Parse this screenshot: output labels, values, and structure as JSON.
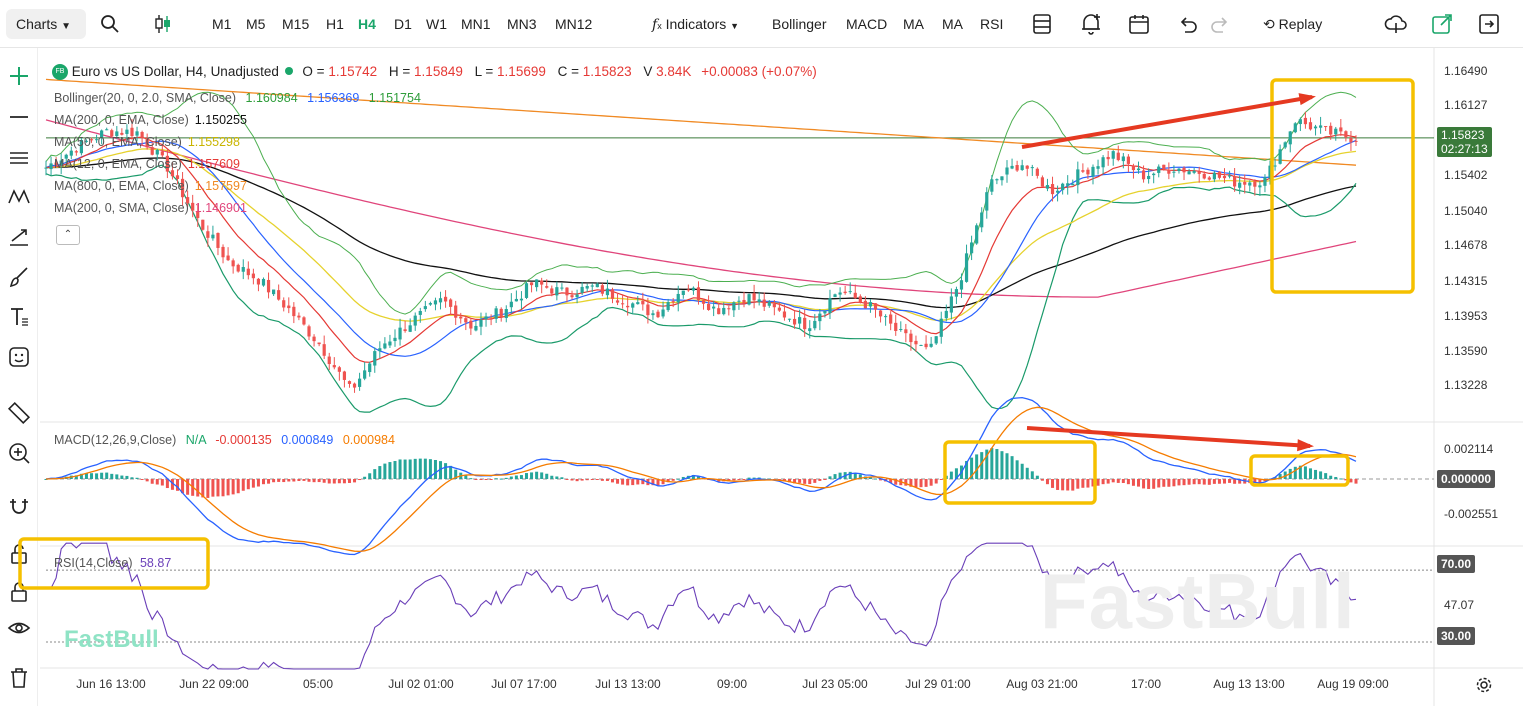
{
  "toolbar": {
    "charts_label": "Charts",
    "timeframes": [
      "M1",
      "M5",
      "M15",
      "H1",
      "H4",
      "D1",
      "W1",
      "MN1",
      "MN3",
      "MN12"
    ],
    "active_timeframe": "H4",
    "indicators_label": "Indicators",
    "quick_indicators": [
      "Bollinger",
      "MACD",
      "MA",
      "MA",
      "RSI"
    ],
    "replay_label": "Replay"
  },
  "symbol": {
    "badge": "FB",
    "name": "Euro vs US Dollar, H4, Unadjusted",
    "o_label": "O =",
    "o": "1.15742",
    "h_label": "H =",
    "h": "1.15849",
    "l_label": "L =",
    "l": "1.15699",
    "c_label": "C =",
    "c": "1.15823",
    "v_label": "V",
    "v": "3.84K",
    "change": "+0.00083 (+0.07%)"
  },
  "indicator_legends": {
    "bollinger": {
      "label": "Bollinger(20, 0, 2.0, SMA, Close)",
      "v1": "1.160984",
      "v2": "1.156369",
      "v3": "1.151754"
    },
    "ma_list": [
      {
        "label": "MA(200, 0, EMA, Close)",
        "value": "1.150255",
        "color": "#111111"
      },
      {
        "label": "MA(50, 0, EMA, Close)",
        "value": "1.155298",
        "color": "#e6d22e"
      },
      {
        "label": "MA(12, 0, EMA, Close)",
        "value": "1.157609",
        "color": "#e53935"
      },
      {
        "label": "MA(800, 0, EMA, Close)",
        "value": "1.157597",
        "color": "#f08a24"
      },
      {
        "label": "MA(200, 0, SMA, Close)",
        "value": "1.146901",
        "color": "#e0457b"
      }
    ],
    "macd": {
      "label": "MACD(12,26,9,Close)",
      "na": "N/A",
      "hist": "-0.000135",
      "macd": "0.000849",
      "signal": "0.000984"
    },
    "rsi": {
      "label": "RSI(14,Close)",
      "value": "58.87"
    }
  },
  "price_axis": {
    "ticks": [
      "1.16490",
      "1.16127",
      "1.15402",
      "1.15040",
      "1.14678",
      "1.14315",
      "1.13953",
      "1.13590",
      "1.13228"
    ],
    "last_price": "1.15823",
    "countdown": "02:27:13"
  },
  "macd_axis": {
    "ticks": [
      "0.002114",
      "0.000000",
      "-0.002551"
    ]
  },
  "rsi_axis": {
    "ticks": [
      "70.00",
      "47.07",
      "30.00"
    ]
  },
  "time_axis": {
    "ticks": [
      "Jun 16 13:00",
      "Jun 22 09:00",
      "05:00",
      "Jul 02 01:00",
      "Jul 07 17:00",
      "Jul 13 13:00",
      "09:00",
      "Jul 23 05:00",
      "Jul 29 01:00",
      "Aug 03 21:00",
      "17:00",
      "Aug 13 13:00",
      "Aug 19 09:00"
    ]
  },
  "watermark": {
    "text": "FastBull"
  },
  "colors": {
    "up": "#26a69a",
    "down": "#ef5350",
    "bollinger": "#4caf50",
    "macd_line": "#2962ff",
    "signal_line": "#f57c00",
    "rsi_line": "#6a3fb8",
    "annotation_box": "#f5c000",
    "annotation_arrow": "#e53921"
  },
  "chart_data": {
    "type": "candlestick",
    "title": "Euro vs US Dollar, H4, Unadjusted",
    "x_ticks": [
      "Jun 16 13:00",
      "Jun 22 09:00",
      "05:00",
      "Jul 02 01:00",
      "Jul 07 17:00",
      "Jul 13 13:00",
      "09:00",
      "Jul 23 05:00",
      "Jul 29 01:00",
      "Aug 03 21:00",
      "17:00",
      "Aug 13 13:00",
      "Aug 19 09:00"
    ],
    "close_path": [
      1.1553,
      1.1573,
      1.1589,
      1.1588,
      1.1553,
      1.15,
      1.146,
      1.1442,
      1.1412,
      1.1378,
      1.1332,
      1.1377,
      1.1401,
      1.1422,
      1.1396,
      1.1412,
      1.1439,
      1.1429,
      1.1435,
      1.1422,
      1.1408,
      1.1437,
      1.1412,
      1.1426,
      1.1411,
      1.1397,
      1.1432,
      1.1417,
      1.1389,
      1.137,
      1.1442,
      1.1537,
      1.1558,
      1.153,
      1.1548,
      1.1567,
      1.1545,
      1.1553,
      1.1548,
      1.1539,
      1.154,
      1.16,
      1.1588,
      1.1582
    ],
    "ylim": [
      1.13046,
      1.16671
    ],
    "ylabel": "",
    "macd": {
      "ylim": [
        -0.004,
        0.004
      ]
    },
    "rsi": {
      "ylim": [
        0,
        100
      ],
      "levels": [
        70,
        30
      ]
    }
  }
}
